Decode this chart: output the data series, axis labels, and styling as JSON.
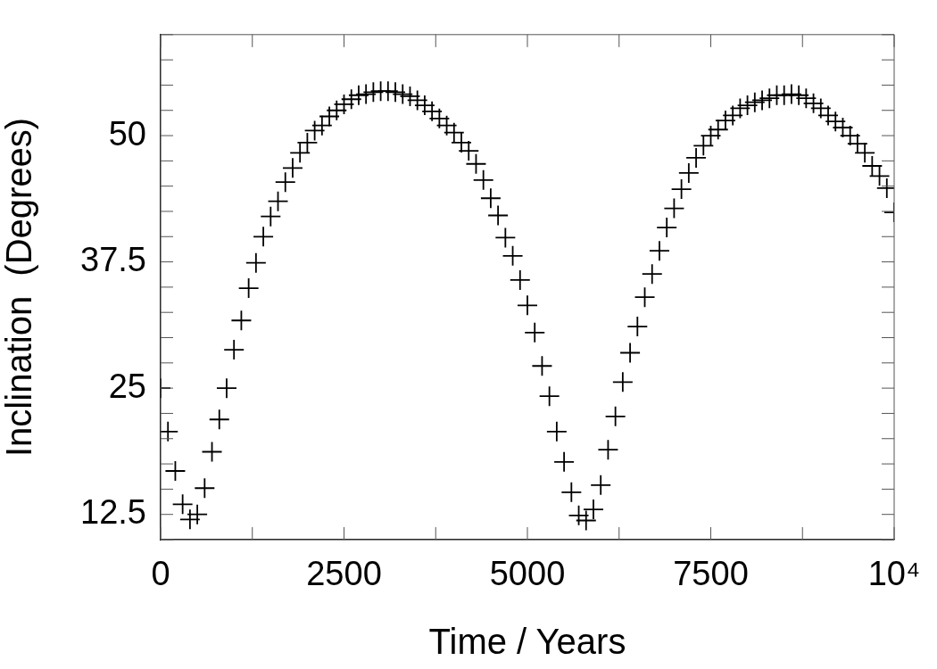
{
  "chart_data": {
    "type": "scatter",
    "xlabel": "Time / Years",
    "ylabel": "Inclination  (Degrees)",
    "marker": "cross",
    "grid": false,
    "legend": false,
    "xlim": [
      0,
      10000
    ],
    "ylim": [
      10,
      60
    ],
    "xticks": [
      0,
      {
        "value": 1250,
        "label": null
      },
      2500,
      {
        "value": 3750,
        "label": null
      },
      5000,
      {
        "value": 6250,
        "label": null
      },
      7500,
      {
        "value": 8750,
        "label": null
      },
      {
        "value": 10000,
        "label": "10⁴"
      }
    ],
    "yticks": [
      {
        "value": 10,
        "label": null
      },
      12.5,
      {
        "value": 15,
        "label": null
      },
      {
        "value": 17.5,
        "label": null
      },
      {
        "value": 20,
        "label": null
      },
      {
        "value": 22.5,
        "label": null
      },
      25,
      {
        "value": 27.5,
        "label": null
      },
      {
        "value": 30,
        "label": null
      },
      {
        "value": 32.5,
        "label": null
      },
      {
        "value": 35,
        "label": null
      },
      37.5,
      {
        "value": 40,
        "label": null
      },
      {
        "value": 42.5,
        "label": null
      },
      {
        "value": 45,
        "label": null
      },
      {
        "value": 47.5,
        "label": null
      },
      50,
      {
        "value": 52.5,
        "label": null
      },
      {
        "value": 55,
        "label": null
      },
      {
        "value": 57.5,
        "label": null
      },
      {
        "value": 60,
        "label": null
      }
    ],
    "series": [
      {
        "color": "#000000",
        "x": [
          0,
          100,
          200,
          300,
          400,
          500,
          600,
          700,
          800,
          900,
          1000,
          1100,
          1200,
          1300,
          1400,
          1500,
          1600,
          1700,
          1800,
          1900,
          2000,
          2100,
          2200,
          2300,
          2400,
          2500,
          2600,
          2700,
          2800,
          2900,
          3000,
          3100,
          3200,
          3300,
          3400,
          3500,
          3600,
          3700,
          3800,
          3900,
          4000,
          4100,
          4200,
          4300,
          4400,
          4500,
          4600,
          4700,
          4800,
          4900,
          5000,
          5100,
          5200,
          5300,
          5400,
          5500,
          5600,
          5700,
          5800,
          5900,
          6000,
          6100,
          6200,
          6300,
          6400,
          6500,
          6600,
          6700,
          6800,
          6900,
          7000,
          7100,
          7200,
          7300,
          7400,
          7500,
          7600,
          7700,
          7800,
          7900,
          8000,
          8100,
          8200,
          8300,
          8400,
          8500,
          8600,
          8700,
          8800,
          8900,
          9000,
          9100,
          9200,
          9300,
          9400,
          9500,
          9600,
          9700,
          9800,
          9900,
          10000
        ],
        "values": [
          25.0,
          20.7,
          16.8,
          13.5,
          12.0,
          12.5,
          15.1,
          18.7,
          21.9,
          25.0,
          28.8,
          31.7,
          34.9,
          37.4,
          40.0,
          42.0,
          43.5,
          45.4,
          46.8,
          48.3,
          49.3,
          50.5,
          51.0,
          51.9,
          52.5,
          53.1,
          53.6,
          54.0,
          54.1,
          54.3,
          54.4,
          54.4,
          54.3,
          54.1,
          53.9,
          53.5,
          53.0,
          52.4,
          51.7,
          51.0,
          50.3,
          49.3,
          48.5,
          47.2,
          45.6,
          43.8,
          42.1,
          39.9,
          38.1,
          35.7,
          33.2,
          30.5,
          27.2,
          24.2,
          20.7,
          17.7,
          14.7,
          12.4,
          11.9,
          13.0,
          15.4,
          18.9,
          22.2,
          25.6,
          28.5,
          31.1,
          34.0,
          36.3,
          38.6,
          40.9,
          42.8,
          44.7,
          46.3,
          47.8,
          49.0,
          50.0,
          50.6,
          51.5,
          52.0,
          52.7,
          53.0,
          53.3,
          53.5,
          53.7,
          54.0,
          54.0,
          54.1,
          54.0,
          53.7,
          53.2,
          52.7,
          52.0,
          51.4,
          50.8,
          50.0,
          49.2,
          48.3,
          47.0,
          46.0,
          44.8,
          42.4
        ]
      }
    ]
  }
}
